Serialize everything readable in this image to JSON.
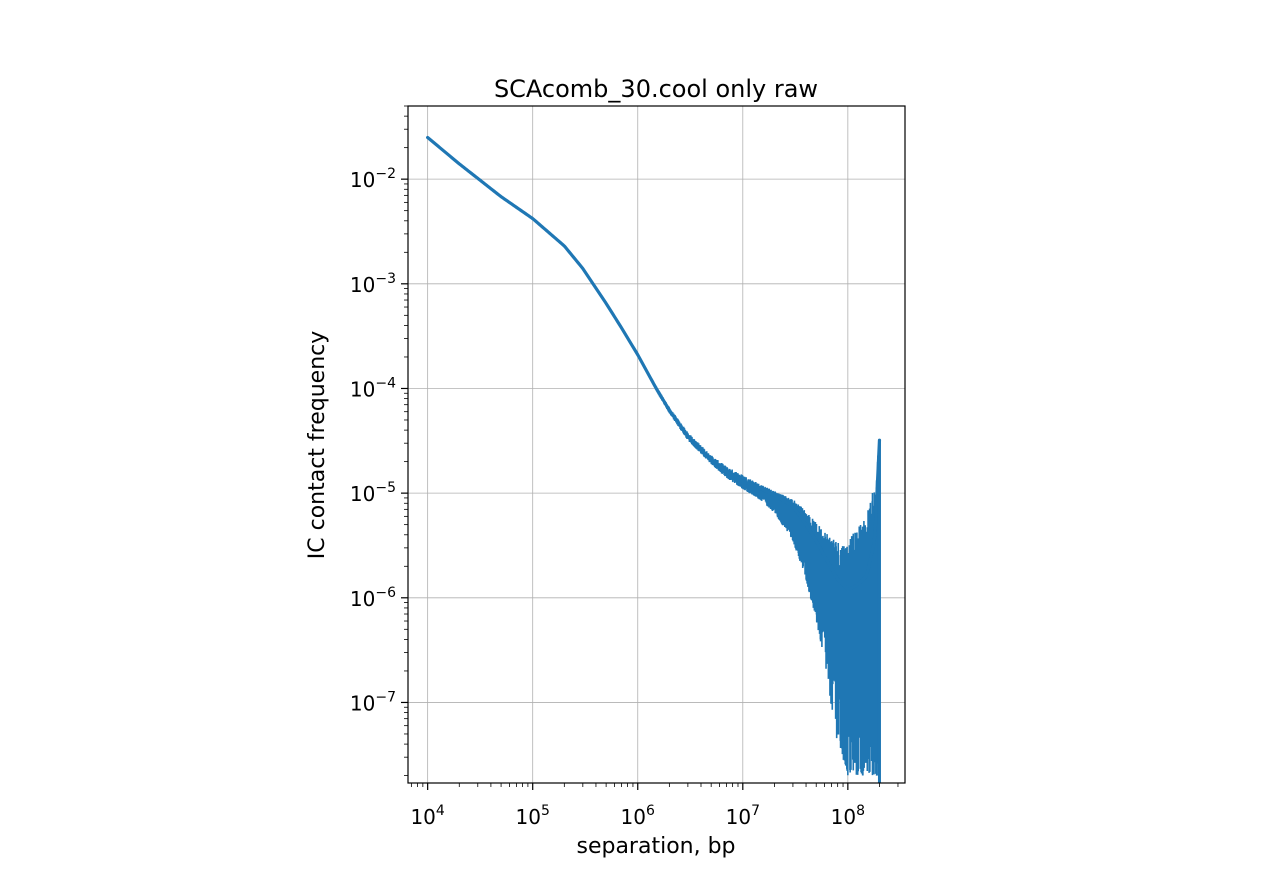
{
  "chart_data": {
    "type": "line",
    "title": "SCAcomb_30.cool only raw",
    "xlabel": "separation, bp",
    "ylabel": "IC contact frequency",
    "xscale": "log",
    "yscale": "log",
    "xlim": [
      6500,
      350000000
    ],
    "ylim": [
      1.7e-08,
      0.05
    ],
    "grid": true,
    "x_ticks": [
      {
        "value": 10000,
        "base": "10",
        "exp": "4"
      },
      {
        "value": 100000,
        "base": "10",
        "exp": "5"
      },
      {
        "value": 1000000,
        "base": "10",
        "exp": "6"
      },
      {
        "value": 10000000,
        "base": "10",
        "exp": "7"
      },
      {
        "value": 100000000,
        "base": "10",
        "exp": "8"
      }
    ],
    "y_ticks": [
      {
        "value": 0.01,
        "base": "10",
        "exp": "−2"
      },
      {
        "value": 0.001,
        "base": "10",
        "exp": "−3"
      },
      {
        "value": 0.0001,
        "base": "10",
        "exp": "−4"
      },
      {
        "value": 1e-05,
        "base": "10",
        "exp": "−5"
      },
      {
        "value": 1e-06,
        "base": "10",
        "exp": "−6"
      },
      {
        "value": 1e-07,
        "base": "10",
        "exp": "−7"
      }
    ],
    "series": [
      {
        "color": "#1f77b4",
        "x": [
          10000,
          20000,
          50000,
          100000,
          200000,
          300000,
          500000,
          700000,
          1000000,
          1500000,
          2000000,
          3000000,
          5000000,
          7000000,
          10000000,
          15000000,
          20000000,
          30000000,
          40000000,
          50000000,
          60000000,
          70000000,
          80000000,
          100000000,
          120000000,
          150000000,
          180000000,
          200000000
        ],
        "y": [
          0.025,
          0.014,
          0.0068,
          0.0042,
          0.0023,
          0.0014,
          0.00065,
          0.00038,
          0.00021,
          0.0001,
          6.2e-05,
          3.5e-05,
          2.1e-05,
          1.6e-05,
          1.3e-05,
          1.1e-05,
          9.5e-06,
          7.5e-06,
          5e-06,
          3.5e-06,
          2.5e-06,
          1.9e-06,
          1.5e-06,
          1.2e-06,
          1.3e-06,
          1.6e-06,
          3.5e-06,
          3.2e-05
        ],
        "noise_lower": [
          0.025,
          0.014,
          0.0068,
          0.0042,
          0.0023,
          0.0014,
          0.00065,
          0.00038,
          0.00021,
          9.5e-05,
          5.8e-05,
          3.2e-05,
          1.9e-05,
          1.4e-05,
          1.1e-05,
          8.5e-06,
          6.5e-06,
          3.5e-06,
          1.5e-06,
          6e-07,
          2.5e-07,
          9e-08,
          4e-08,
          2e-08,
          2e-08,
          2e-08,
          2e-08,
          2e-08
        ],
        "noise_upper": [
          0.025,
          0.014,
          0.0068,
          0.0042,
          0.0023,
          0.0014,
          0.00065,
          0.00038,
          0.00021,
          0.000105,
          6.6e-05,
          3.8e-05,
          2.3e-05,
          1.8e-05,
          1.5e-05,
          1.2e-05,
          1.05e-05,
          8.8e-06,
          6.8e-06,
          5.2e-06,
          4.5e-06,
          4e-06,
          3.6e-06,
          3.5e-06,
          4.5e-06,
          6.5e-06,
          1.2e-05,
          3.2e-05
        ]
      }
    ]
  }
}
